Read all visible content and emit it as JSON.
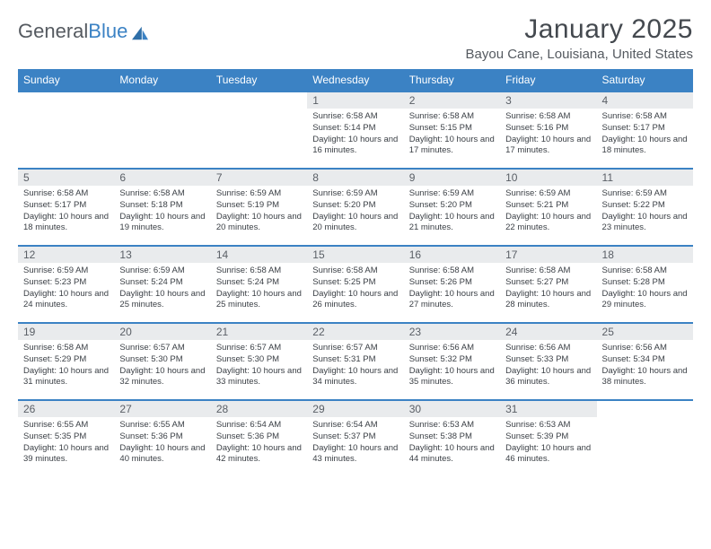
{
  "brand": {
    "part1": "General",
    "part2": "Blue"
  },
  "title": "January 2025",
  "location": "Bayou Cane, Louisiana, United States",
  "colors": {
    "header_bg": "#3b82c4",
    "header_text": "#ffffff",
    "daynum_bg": "#e9ebed",
    "row_border": "#3b82c4",
    "body_text": "#3a3f45"
  },
  "day_headers": [
    "Sunday",
    "Monday",
    "Tuesday",
    "Wednesday",
    "Thursday",
    "Friday",
    "Saturday"
  ],
  "weeks": [
    [
      null,
      null,
      null,
      {
        "n": "1",
        "sr": "6:58 AM",
        "ss": "5:14 PM",
        "dl": "10 hours and 16 minutes."
      },
      {
        "n": "2",
        "sr": "6:58 AM",
        "ss": "5:15 PM",
        "dl": "10 hours and 17 minutes."
      },
      {
        "n": "3",
        "sr": "6:58 AM",
        "ss": "5:16 PM",
        "dl": "10 hours and 17 minutes."
      },
      {
        "n": "4",
        "sr": "6:58 AM",
        "ss": "5:17 PM",
        "dl": "10 hours and 18 minutes."
      }
    ],
    [
      {
        "n": "5",
        "sr": "6:58 AM",
        "ss": "5:17 PM",
        "dl": "10 hours and 18 minutes."
      },
      {
        "n": "6",
        "sr": "6:58 AM",
        "ss": "5:18 PM",
        "dl": "10 hours and 19 minutes."
      },
      {
        "n": "7",
        "sr": "6:59 AM",
        "ss": "5:19 PM",
        "dl": "10 hours and 20 minutes."
      },
      {
        "n": "8",
        "sr": "6:59 AM",
        "ss": "5:20 PM",
        "dl": "10 hours and 20 minutes."
      },
      {
        "n": "9",
        "sr": "6:59 AM",
        "ss": "5:20 PM",
        "dl": "10 hours and 21 minutes."
      },
      {
        "n": "10",
        "sr": "6:59 AM",
        "ss": "5:21 PM",
        "dl": "10 hours and 22 minutes."
      },
      {
        "n": "11",
        "sr": "6:59 AM",
        "ss": "5:22 PM",
        "dl": "10 hours and 23 minutes."
      }
    ],
    [
      {
        "n": "12",
        "sr": "6:59 AM",
        "ss": "5:23 PM",
        "dl": "10 hours and 24 minutes."
      },
      {
        "n": "13",
        "sr": "6:59 AM",
        "ss": "5:24 PM",
        "dl": "10 hours and 25 minutes."
      },
      {
        "n": "14",
        "sr": "6:58 AM",
        "ss": "5:24 PM",
        "dl": "10 hours and 25 minutes."
      },
      {
        "n": "15",
        "sr": "6:58 AM",
        "ss": "5:25 PM",
        "dl": "10 hours and 26 minutes."
      },
      {
        "n": "16",
        "sr": "6:58 AM",
        "ss": "5:26 PM",
        "dl": "10 hours and 27 minutes."
      },
      {
        "n": "17",
        "sr": "6:58 AM",
        "ss": "5:27 PM",
        "dl": "10 hours and 28 minutes."
      },
      {
        "n": "18",
        "sr": "6:58 AM",
        "ss": "5:28 PM",
        "dl": "10 hours and 29 minutes."
      }
    ],
    [
      {
        "n": "19",
        "sr": "6:58 AM",
        "ss": "5:29 PM",
        "dl": "10 hours and 31 minutes."
      },
      {
        "n": "20",
        "sr": "6:57 AM",
        "ss": "5:30 PM",
        "dl": "10 hours and 32 minutes."
      },
      {
        "n": "21",
        "sr": "6:57 AM",
        "ss": "5:30 PM",
        "dl": "10 hours and 33 minutes."
      },
      {
        "n": "22",
        "sr": "6:57 AM",
        "ss": "5:31 PM",
        "dl": "10 hours and 34 minutes."
      },
      {
        "n": "23",
        "sr": "6:56 AM",
        "ss": "5:32 PM",
        "dl": "10 hours and 35 minutes."
      },
      {
        "n": "24",
        "sr": "6:56 AM",
        "ss": "5:33 PM",
        "dl": "10 hours and 36 minutes."
      },
      {
        "n": "25",
        "sr": "6:56 AM",
        "ss": "5:34 PM",
        "dl": "10 hours and 38 minutes."
      }
    ],
    [
      {
        "n": "26",
        "sr": "6:55 AM",
        "ss": "5:35 PM",
        "dl": "10 hours and 39 minutes."
      },
      {
        "n": "27",
        "sr": "6:55 AM",
        "ss": "5:36 PM",
        "dl": "10 hours and 40 minutes."
      },
      {
        "n": "28",
        "sr": "6:54 AM",
        "ss": "5:36 PM",
        "dl": "10 hours and 42 minutes."
      },
      {
        "n": "29",
        "sr": "6:54 AM",
        "ss": "5:37 PM",
        "dl": "10 hours and 43 minutes."
      },
      {
        "n": "30",
        "sr": "6:53 AM",
        "ss": "5:38 PM",
        "dl": "10 hours and 44 minutes."
      },
      {
        "n": "31",
        "sr": "6:53 AM",
        "ss": "5:39 PM",
        "dl": "10 hours and 46 minutes."
      },
      null
    ]
  ],
  "labels": {
    "sunrise": "Sunrise:",
    "sunset": "Sunset:",
    "daylight": "Daylight:"
  }
}
